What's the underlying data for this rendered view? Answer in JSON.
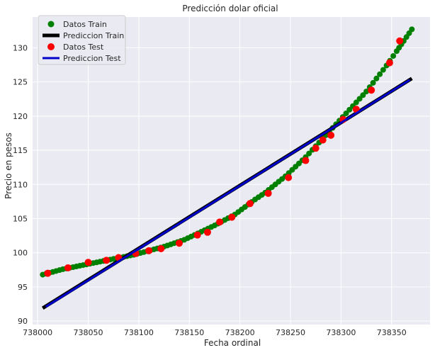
{
  "chart_data": {
    "type": "scatter",
    "title": "Predicción dolar oficial",
    "xlabel": "Fecha ordinal",
    "ylabel": "Precio en pesos",
    "xlim": [
      737995,
      738388
    ],
    "ylim": [
      89.5,
      134.5
    ],
    "xticks": [
      738000,
      738050,
      738100,
      738150,
      738200,
      738250,
      738300,
      738350
    ],
    "yticks": [
      90,
      95,
      100,
      105,
      110,
      115,
      120,
      125,
      130
    ],
    "grid": true,
    "legend_position": "top-left",
    "background_color": "#eaeaf2",
    "series": [
      {
        "name": "Datos Train",
        "kind": "points",
        "color": "#008000",
        "x": [
          738005,
          738015,
          738025,
          738035,
          738045,
          738055,
          738065,
          738075,
          738085,
          738095,
          738105,
          738115,
          738125,
          738135,
          738145,
          738155,
          738165,
          738175,
          738185,
          738195,
          738205,
          738215,
          738225,
          738235,
          738245,
          738255,
          738265,
          738275,
          738285,
          738295,
          738305,
          738315,
          738325,
          738335,
          738345,
          738355,
          738362,
          738370
        ],
        "y": [
          96.8,
          97.2,
          97.6,
          97.9,
          98.2,
          98.5,
          98.8,
          99.1,
          99.4,
          99.7,
          100.1,
          100.5,
          100.9,
          101.4,
          101.9,
          102.6,
          103.3,
          104.0,
          104.8,
          105.6,
          106.7,
          107.8,
          108.8,
          110.0,
          111.2,
          112.6,
          114.0,
          115.6,
          117.2,
          118.8,
          120.4,
          122.0,
          123.6,
          125.5,
          127.4,
          129.5,
          131.0,
          132.7
        ]
      },
      {
        "name": "Prediccion Train",
        "kind": "line",
        "color": "#000000",
        "x": [
          738005,
          738370
        ],
        "y": [
          91.9,
          125.5
        ]
      },
      {
        "name": "Datos Test",
        "kind": "points",
        "color": "#ff0000",
        "x": [
          738010,
          738030,
          738050,
          738068,
          738080,
          738097,
          738110,
          738122,
          738140,
          738158,
          738168,
          738180,
          738192,
          738210,
          738228,
          738248,
          738265,
          738275,
          738282,
          738290,
          738302,
          738315,
          738330,
          738348,
          738358
        ],
        "y": [
          97.0,
          97.8,
          98.6,
          98.9,
          99.3,
          99.9,
          100.3,
          100.6,
          101.4,
          102.6,
          103.0,
          104.5,
          105.2,
          107.2,
          108.7,
          111.0,
          113.5,
          115.3,
          116.5,
          117.2,
          119.5,
          121.0,
          123.8,
          127.8,
          131.0
        ]
      },
      {
        "name": "Prediccion Test",
        "kind": "line",
        "color": "#0000cd",
        "x": [
          738008,
          738368
        ],
        "y": [
          92.1,
          125.3
        ]
      }
    ]
  }
}
